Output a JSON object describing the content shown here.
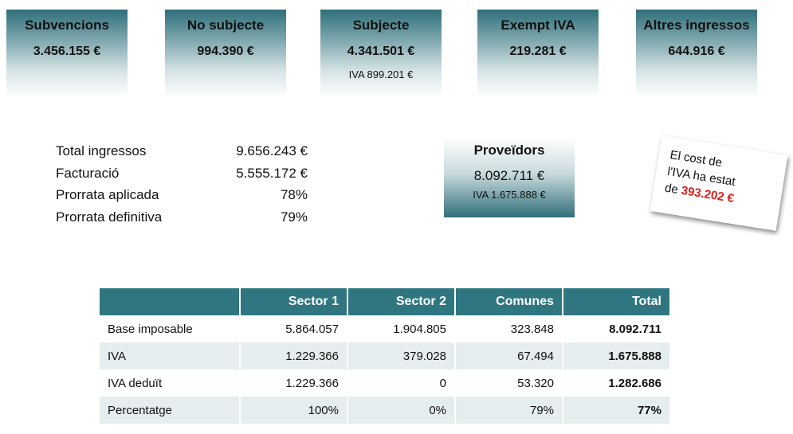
{
  "cards": [
    {
      "title": "Subvencions",
      "value": "3.456.155 €"
    },
    {
      "title": "No subjecte",
      "value": "994.390 €"
    },
    {
      "title": "Subjecte",
      "value": "4.341.501 €",
      "sub": "IVA 899.201 €"
    },
    {
      "title": "Exempt IVA",
      "value": "219.281 €"
    },
    {
      "title": "Altres ingressos",
      "value": "644.916 €"
    }
  ],
  "summary": [
    {
      "label": "Total ingressos",
      "value": "9.656.243 €"
    },
    {
      "label": "Facturació",
      "value": "5.555.172 €"
    },
    {
      "label": "Prorrata aplicada",
      "value": "78%"
    },
    {
      "label": "Prorrata definitiva",
      "value": "79%"
    }
  ],
  "providers": {
    "title": "Proveïdors",
    "value": "8.092.711 €",
    "sub": "IVA 1.675.888 €"
  },
  "note": {
    "lines": [
      "El cost de",
      "l'IVA ha estat",
      "de"
    ],
    "highlight": "393.202 €"
  },
  "table": {
    "header": [
      "Sector 1",
      "Sector 2",
      "Comunes",
      "Total"
    ],
    "rows": [
      [
        "Base imposable",
        "5.864.057",
        "1.904.805",
        "323.848",
        "8.092.711"
      ],
      [
        "IVA",
        "1.229.366",
        "379.028",
        "67.494",
        "1.675.888"
      ],
      [
        "IVA deduït",
        "1.229.366",
        "0",
        "53.320",
        "1.282.686"
      ],
      [
        "Percentatge",
        "100%",
        "0%",
        "79%",
        "77%"
      ]
    ]
  }
}
